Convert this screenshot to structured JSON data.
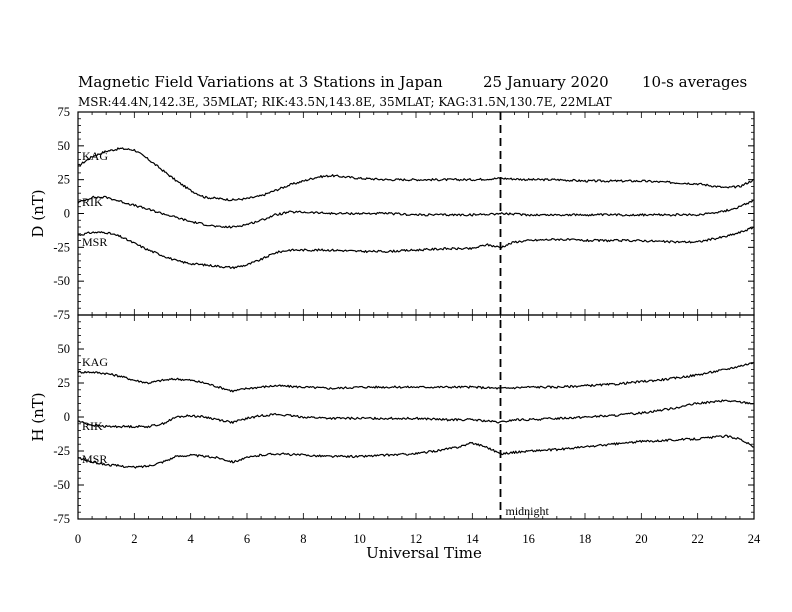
{
  "title": "Magnetic Field Variations at 3 Stations in Japan",
  "date": "25 January  2020",
  "averaging": "10-s averages",
  "stations_line": "MSR:44.4N,142.3E, 35MLAT;  RIK:43.5N,143.8E, 35MLAT;  KAG:31.5N,130.7E, 22MLAT",
  "colors": {
    "line": "#000000",
    "background": "#ffffff"
  },
  "chart_data": {
    "type": "line",
    "xlabel": "Universal Time",
    "xlim": [
      0,
      24
    ],
    "x_ticks": [
      0,
      2,
      4,
      6,
      8,
      10,
      12,
      14,
      16,
      18,
      20,
      22,
      24
    ],
    "annotation": {
      "x": 15,
      "label": "midnight",
      "style": "dashed"
    },
    "panels": [
      {
        "id": "D",
        "ylabel": "D (nT)",
        "ylim": [
          -75,
          75
        ],
        "y_ticks": [
          75,
          50,
          25,
          0,
          -25,
          -50,
          -75
        ],
        "series": [
          {
            "name": "KAG",
            "x": [
              0,
              0.5,
              1,
              1.5,
              2,
              2.5,
              3,
              3.5,
              4,
              4.5,
              5,
              5.5,
              6,
              6.5,
              7,
              7.5,
              8,
              8.5,
              9,
              9.5,
              10,
              11,
              12,
              13,
              14,
              15,
              16,
              17,
              18,
              19,
              20,
              21,
              22,
              23,
              23.5,
              24
            ],
            "y": [
              35,
              42,
              46,
              48,
              47,
              40,
              32,
              24,
              17,
              12,
              11,
              10,
              11,
              13,
              17,
              21,
              24,
              27,
              28,
              27,
              26,
              25,
              25,
              25,
              25,
              26,
              25,
              25,
              24,
              24,
              24,
              23,
              22,
              19,
              20,
              25
            ]
          },
          {
            "name": "RIK",
            "x": [
              0,
              0.5,
              1,
              1.5,
              2,
              2.5,
              3,
              3.5,
              4,
              4.5,
              5,
              5.5,
              6,
              6.5,
              7,
              7.5,
              8,
              9,
              10,
              11,
              12,
              13,
              14,
              15,
              16,
              17,
              18,
              19,
              20,
              21,
              22,
              23,
              23.5,
              24
            ],
            "y": [
              8,
              12,
              12,
              9,
              6,
              3,
              0,
              -3,
              -6,
              -8,
              -10,
              -10,
              -8,
              -5,
              -1,
              1,
              1,
              0,
              0,
              0,
              -1,
              -1,
              -1,
              0,
              -1,
              -1,
              -1,
              -1,
              -1,
              -1,
              -1,
              2,
              5,
              10
            ]
          },
          {
            "name": "MSR",
            "x": [
              0,
              0.5,
              1,
              1.5,
              2,
              2.5,
              3,
              3.5,
              4,
              4.5,
              5,
              5.5,
              6,
              6.5,
              7,
              7.5,
              8,
              9,
              10,
              11,
              12,
              13,
              14,
              14.5,
              15,
              15.5,
              16,
              17,
              18,
              19,
              20,
              21,
              22,
              23,
              23.5,
              24
            ],
            "y": [
              -16,
              -14,
              -14,
              -17,
              -22,
              -27,
              -31,
              -35,
              -37,
              -38,
              -39,
              -40,
              -38,
              -34,
              -29,
              -27,
              -27,
              -27,
              -28,
              -28,
              -27,
              -26,
              -26,
              -23,
              -25,
              -21,
              -20,
              -19,
              -20,
              -20,
              -20,
              -21,
              -21,
              -17,
              -14,
              -10
            ]
          }
        ]
      },
      {
        "id": "H",
        "ylabel": "H (nT)",
        "ylim": [
          -75,
          75
        ],
        "y_ticks": [
          75,
          50,
          25,
          0,
          -25,
          -50,
          -75
        ],
        "series": [
          {
            "name": "KAG",
            "x": [
              0,
              0.5,
              1,
              1.5,
              2,
              2.5,
              3,
              3.5,
              4,
              4.5,
              5,
              5.5,
              6,
              6.5,
              7,
              8,
              9,
              10,
              11,
              12,
              13,
              14,
              15,
              16,
              17,
              18,
              19,
              20,
              21,
              22,
              23,
              24
            ],
            "y": [
              33,
              33,
              32,
              30,
              27,
              25,
              27,
              28,
              27,
              25,
              22,
              19,
              21,
              22,
              23,
              22,
              21,
              22,
              22,
              22,
              22,
              22,
              21,
              22,
              22,
              23,
              24,
              26,
              28,
              31,
              35,
              40
            ]
          },
          {
            "name": "RIK",
            "x": [
              0,
              0.5,
              1,
              1.5,
              2,
              2.5,
              3,
              3.5,
              4,
              4.5,
              5,
              5.5,
              6,
              6.5,
              7,
              7.5,
              8,
              9,
              10,
              11,
              12,
              13,
              14,
              15,
              15.5,
              16,
              17,
              18,
              19,
              20,
              21,
              22,
              23,
              24
            ],
            "y": [
              -3,
              -6,
              -7,
              -7,
              -7,
              -7,
              -5,
              0,
              1,
              0,
              -2,
              -4,
              -1,
              1,
              2,
              1,
              0,
              -1,
              -1,
              -1,
              -1,
              -2,
              -2,
              -4,
              -2,
              -2,
              -1,
              0,
              1,
              3,
              6,
              10,
              12,
              10
            ]
          },
          {
            "name": "MSR",
            "x": [
              0,
              0.5,
              1,
              1.5,
              2,
              2.5,
              3,
              3.5,
              4,
              4.5,
              5,
              5.5,
              6,
              6.5,
              7,
              8,
              9,
              10,
              11,
              12,
              13,
              13.5,
              14,
              14.5,
              15,
              15.5,
              16,
              17,
              18,
              19,
              20,
              21,
              22,
              23,
              23.5,
              24
            ],
            "y": [
              -30,
              -33,
              -35,
              -36,
              -37,
              -36,
              -33,
              -29,
              -28,
              -29,
              -30,
              -33,
              -30,
              -28,
              -27,
              -28,
              -29,
              -29,
              -28,
              -27,
              -24,
              -22,
              -19,
              -22,
              -27,
              -26,
              -25,
              -24,
              -22,
              -20,
              -18,
              -17,
              -16,
              -14,
              -16,
              -22
            ]
          }
        ]
      }
    ]
  }
}
